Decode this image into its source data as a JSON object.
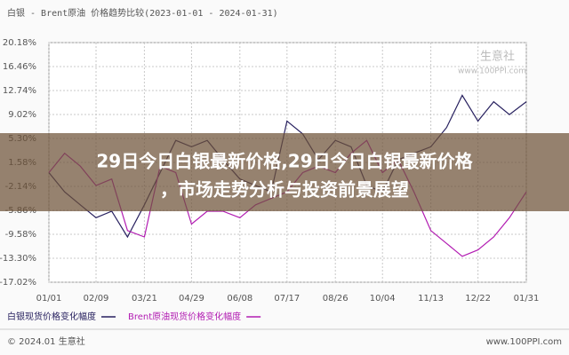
{
  "chart_data": {
    "type": "line",
    "title": "白银 - Brent原油 价格趋势比较(2023-01-01 - 2024-01-31)",
    "x": [
      0,
      13,
      26,
      39,
      52,
      65,
      79,
      92,
      105,
      118,
      131,
      144,
      158,
      171,
      184,
      197,
      210,
      223,
      237,
      250,
      263,
      276,
      289,
      302,
      316,
      329,
      342,
      355,
      368,
      381,
      395
    ],
    "series": [
      {
        "name": "白银现货价格变化幅度",
        "color": "#27205f",
        "values": [
          0,
          -3,
          -5,
          -7,
          -6,
          -10,
          -5,
          0,
          5,
          4,
          5,
          2,
          -1,
          -2,
          -3,
          8,
          6,
          2,
          5,
          4,
          -2,
          -3,
          2,
          3,
          4,
          7,
          12,
          8,
          11,
          9,
          11
        ]
      },
      {
        "name": "Brent原油现货价格变化幅度",
        "color": "#b21cb2",
        "values": [
          0,
          3,
          1,
          -2,
          -1,
          -9,
          -10,
          1,
          0,
          -8,
          -6,
          -6,
          -7,
          -5,
          -4,
          -3,
          0,
          1,
          0,
          3,
          5,
          0,
          2,
          -3,
          -9,
          -11,
          -13,
          -12,
          -10,
          -7,
          -3
        ]
      }
    ],
    "xlim": [
      0,
      395
    ],
    "xticks": [
      {
        "value": 0,
        "label": "01/01"
      },
      {
        "value": 39,
        "label": "02/09"
      },
      {
        "value": 79,
        "label": "03/21"
      },
      {
        "value": 118,
        "label": "04/29"
      },
      {
        "value": 158,
        "label": "06/08"
      },
      {
        "value": 197,
        "label": "07/17"
      },
      {
        "value": 237,
        "label": "08/26"
      },
      {
        "value": 276,
        "label": "10/04"
      },
      {
        "value": 316,
        "label": "11/13"
      },
      {
        "value": 355,
        "label": "12/22"
      },
      {
        "value": 395,
        "label": "01/31"
      }
    ],
    "ylim": [
      -17.02,
      20.18
    ],
    "yticks": [
      {
        "value": 20.18,
        "label": "20.18%"
      },
      {
        "value": 16.46,
        "label": "16.46%"
      },
      {
        "value": 12.74,
        "label": "12.74%"
      },
      {
        "value": 9.02,
        "label": "9.02%"
      },
      {
        "value": 5.3,
        "label": "5.30%"
      },
      {
        "value": 1.58,
        "label": "1.58%"
      },
      {
        "value": -2.14,
        "label": "-2.14%"
      },
      {
        "value": -5.86,
        "label": "-5.86%"
      },
      {
        "value": -9.58,
        "label": "-9.58%"
      },
      {
        "value": -13.3,
        "label": "-13.30%"
      },
      {
        "value": -17.02,
        "label": "-17.02%"
      }
    ],
    "grid": true
  },
  "watermark": {
    "brand": "生意社",
    "url": "www.100PPI.com"
  },
  "overlay": {
    "lines": [
      "29日今日白银最新价格,29日今日白银最新价格",
      "，市场走势分析与投资前景展望"
    ]
  },
  "footer": {
    "left": "© 2024.01 生意社",
    "right": "www.100PPI.com"
  }
}
